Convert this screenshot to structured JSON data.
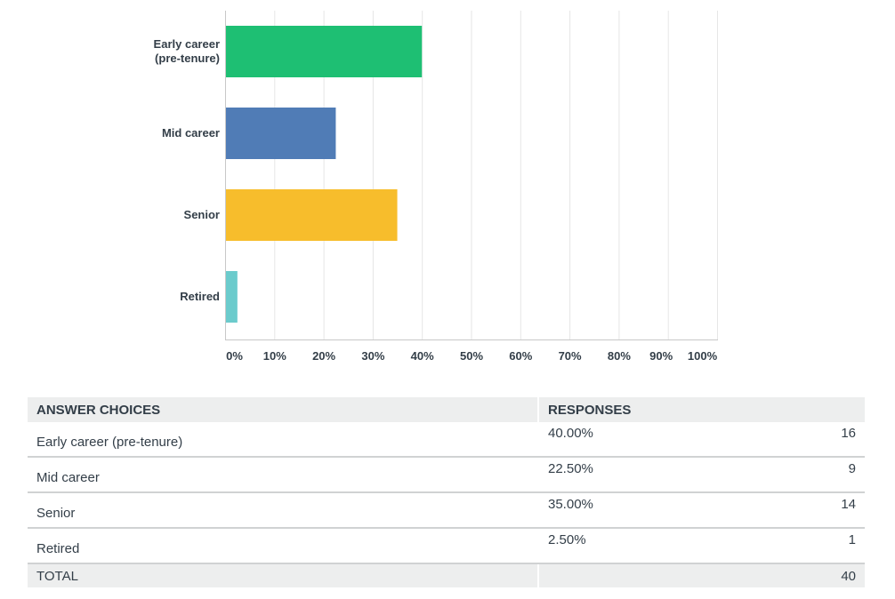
{
  "chart_data": {
    "type": "bar",
    "orientation": "horizontal",
    "categories": [
      "Early career\n(pre-tenure)",
      "Mid career",
      "Senior",
      "Retired"
    ],
    "values": [
      40.0,
      22.5,
      35.0,
      2.5
    ],
    "colors": [
      "#1ebf73",
      "#507cb6",
      "#f7bd2c",
      "#6bcbcc"
    ],
    "xlim": [
      0,
      100
    ],
    "ticks": [
      "0%",
      "10%",
      "20%",
      "30%",
      "40%",
      "50%",
      "60%",
      "70%",
      "80%",
      "90%",
      "100%"
    ],
    "grid": true
  },
  "table": {
    "headers": {
      "choices": "ANSWER CHOICES",
      "responses": "RESPONSES"
    },
    "rows": [
      {
        "choice": "Early career (pre-tenure)",
        "percent": "40.00%",
        "count": "16"
      },
      {
        "choice": "Mid career",
        "percent": "22.50%",
        "count": "9"
      },
      {
        "choice": "Senior",
        "percent": "35.00%",
        "count": "14"
      },
      {
        "choice": "Retired",
        "percent": "2.50%",
        "count": "1"
      }
    ],
    "total": {
      "label": "TOTAL",
      "count": "40"
    }
  }
}
